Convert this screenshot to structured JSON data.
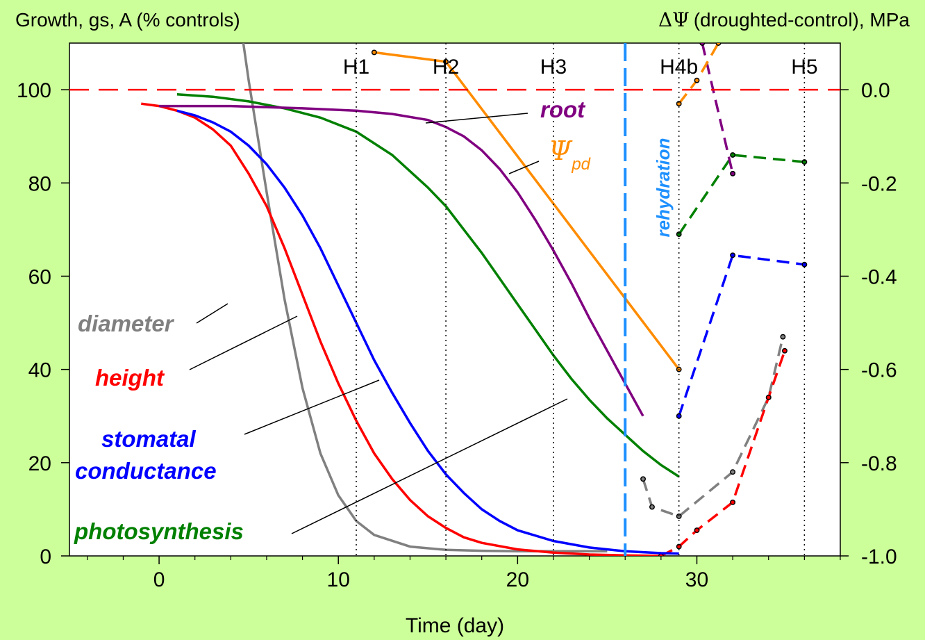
{
  "chart_data": {
    "type": "line",
    "title_left": "Growth, gs, A (% controls)",
    "title_right": "(droughted-control), MPa",
    "title_right_symbol": "ΔΨ",
    "xlabel": "Time (day)",
    "xlim": [
      -5,
      38
    ],
    "ylim_left": [
      0,
      110
    ],
    "ylim_right": [
      -1.0,
      0.1
    ],
    "x_ticks": [
      "0",
      "10",
      "20",
      "30"
    ],
    "x_tick_values": [
      0,
      10,
      20,
      30
    ],
    "y_left_ticks": [
      "0",
      "20",
      "40",
      "60",
      "80",
      "100"
    ],
    "y_left_tick_values": [
      0,
      20,
      40,
      60,
      80,
      100
    ],
    "y_right_ticks": [
      "-1.0",
      "-0.8",
      "-0.6",
      "-0.4",
      "-0.2",
      "0.0"
    ],
    "y_right_tick_values": [
      -1.0,
      -0.8,
      -0.6,
      -0.4,
      -0.2,
      0.0
    ],
    "reference_line": {
      "y": 100,
      "color": "#ff0000"
    },
    "harvest_lines": [
      {
        "label": "H1",
        "x": 11
      },
      {
        "label": "H2",
        "x": 16
      },
      {
        "label": "H3",
        "x": 22
      },
      {
        "label": "H4b",
        "x": 29
      },
      {
        "label": "H5",
        "x": 36
      }
    ],
    "rehydration": {
      "label": "rehydration",
      "x": 26,
      "color": "#1e90ff"
    },
    "series": [
      {
        "name": "diameter",
        "color": "#808080",
        "x": [
          4.7,
          5,
          6,
          7,
          8,
          9,
          10,
          11,
          12,
          14,
          16,
          18,
          20,
          22,
          25
        ],
        "y": [
          110,
          102,
          78,
          55,
          36,
          22,
          13,
          7.5,
          4.5,
          2,
          1.3,
          1.1,
          1,
          1,
          1
        ],
        "recovery": {
          "x": [
            27,
            27.5,
            29,
            32,
            34,
            34.8
          ],
          "y": [
            16.5,
            10.5,
            8.5,
            18,
            34,
            47
          ]
        }
      },
      {
        "name": "height",
        "color": "#ff0000",
        "x": [
          -1,
          0,
          1,
          2,
          3,
          4,
          5,
          6,
          7,
          8,
          9,
          10,
          11,
          12,
          13,
          14,
          15,
          16,
          17,
          18,
          20,
          22,
          24,
          26,
          28
        ],
        "y": [
          97,
          96.5,
          95.5,
          94,
          91.5,
          88,
          82,
          75,
          66,
          56,
          46,
          37,
          29,
          22,
          16.5,
          12,
          8.5,
          6,
          4,
          2.8,
          1.4,
          0.7,
          0.3,
          0.1,
          0
        ],
        "recovery": {
          "x": [
            28,
            29,
            30,
            32,
            34,
            34.9
          ],
          "y": [
            0,
            2,
            5.5,
            11.5,
            34,
            44
          ]
        }
      },
      {
        "name": "stomatal conductance",
        "label_lines": [
          "stomatal",
          "conductance"
        ],
        "color": "#0000ff",
        "x": [
          1,
          2,
          3,
          4,
          5,
          6,
          7,
          8,
          9,
          10,
          11,
          12,
          13,
          14,
          15,
          16,
          17,
          18,
          19,
          20,
          22,
          24,
          26,
          28,
          29
        ],
        "y": [
          95.5,
          94.5,
          93,
          91,
          88,
          84,
          79,
          73,
          66,
          58,
          50,
          42,
          35,
          28.5,
          22.5,
          17.5,
          13.5,
          10,
          7.5,
          5.5,
          3.2,
          1.8,
          1,
          0.6,
          0.5
        ],
        "recovery": {
          "x": [
            29,
            32,
            36
          ],
          "y": [
            -0.7,
            -0.355,
            -0.375
          ]
        }
      },
      {
        "name": "photosynthesis",
        "color": "#008000",
        "x": [
          1,
          3,
          5,
          7,
          9,
          11,
          13,
          15,
          16,
          17,
          18,
          19,
          20,
          21,
          22,
          23,
          24,
          25,
          26,
          27,
          28,
          29
        ],
        "y": [
          99,
          98.5,
          97.5,
          96,
          94,
          91,
          86,
          79,
          75,
          70,
          65,
          59.5,
          54,
          48.5,
          43,
          38,
          33.5,
          29.5,
          26,
          22.5,
          19.5,
          17
        ],
        "recovery": {
          "x": [
            29,
            32,
            36
          ],
          "y": [
            -0.31,
            -0.14,
            -0.155
          ]
        }
      },
      {
        "name": "root",
        "color": "#800080",
        "x": [
          0,
          4,
          8,
          11,
          13,
          15,
          16,
          17,
          18,
          19,
          20,
          21,
          22,
          23,
          24,
          25,
          26,
          27
        ],
        "y": [
          96.5,
          96.5,
          96,
          95.5,
          94.8,
          93.5,
          92,
          90,
          87,
          83,
          78,
          72,
          65.5,
          58.5,
          51,
          44,
          37,
          30
        ],
        "recovery": {
          "x": [
            30.3,
            32
          ],
          "y": [
            0.1,
            -0.18
          ]
        }
      },
      {
        "name": "Ψpd",
        "label_main": "Ψ",
        "label_sub": "pd",
        "color": "#ff8c00",
        "axis": "right",
        "x": [
          12,
          16,
          29
        ],
        "y": [
          0.08,
          0.06,
          -0.6
        ],
        "recovery": {
          "x": [
            29,
            30,
            31.2
          ],
          "y": [
            -0.03,
            0.02,
            0.1
          ]
        }
      }
    ]
  }
}
